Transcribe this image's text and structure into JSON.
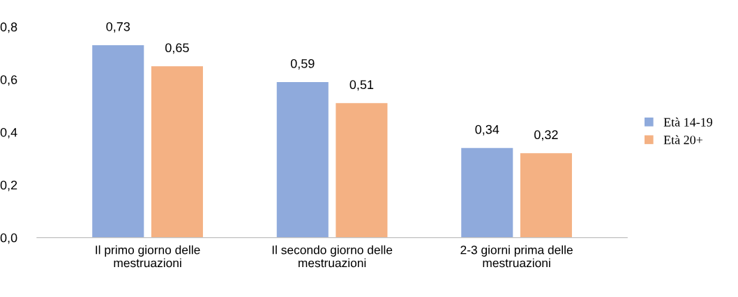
{
  "chart_data": {
    "type": "bar",
    "categories": [
      "Il primo giorno delle\nmestruazioni",
      "Il secondo giorno delle\nmestruazioni",
      "2-3 giorni prima delle\nmestruazioni"
    ],
    "series": [
      {
        "name": "Età 14-19",
        "color": "#8faadc",
        "values": [
          0.73,
          0.59,
          0.34
        ],
        "value_labels": [
          "0,73",
          "0,59",
          "0,34"
        ]
      },
      {
        "name": "Età 20+",
        "color": "#f4b183",
        "values": [
          0.65,
          0.51,
          0.32
        ],
        "value_labels": [
          "0,65",
          "0,51",
          "0,32"
        ]
      }
    ],
    "ylim": [
      0,
      0.8
    ],
    "yticks": [
      {
        "value": 0,
        "label": "0,0"
      },
      {
        "value": 0.2,
        "label": "0,2"
      },
      {
        "value": 0.4,
        "label": "0,4"
      },
      {
        "value": 0.6,
        "label": "0,6"
      },
      {
        "value": 0.8,
        "label": "0,8"
      }
    ],
    "grid": false,
    "legend": "right"
  }
}
